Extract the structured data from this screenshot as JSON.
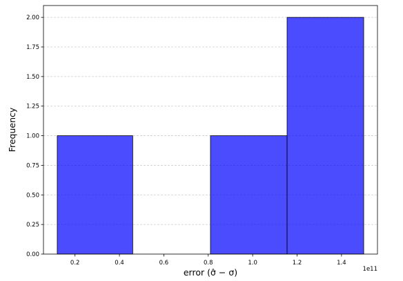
{
  "chart_data": {
    "type": "bar",
    "subtype": "histogram",
    "bins": [
      {
        "x0": 0.12,
        "x1": 0.46,
        "count": 1
      },
      {
        "x0": 0.46,
        "x1": 0.81,
        "count": 0
      },
      {
        "x0": 0.81,
        "x1": 1.155,
        "count": 1
      },
      {
        "x0": 1.155,
        "x1": 1.5,
        "count": 2
      }
    ],
    "xlabel": "error (σ̂ − σ)",
    "ylabel": "Frequency",
    "x_offset_label": "1e11",
    "xlim": [
      0.058,
      1.562
    ],
    "ylim": [
      0,
      2.1
    ],
    "xticks": [
      {
        "value": 0.2,
        "label": "0.2"
      },
      {
        "value": 0.4,
        "label": "0.4"
      },
      {
        "value": 0.6,
        "label": "0.6"
      },
      {
        "value": 0.8,
        "label": "0.8"
      },
      {
        "value": 1.0,
        "label": "1.0"
      },
      {
        "value": 1.2,
        "label": "1.2"
      },
      {
        "value": 1.4,
        "label": "1.4"
      }
    ],
    "yticks": [
      {
        "value": 0.0,
        "label": "0.00"
      },
      {
        "value": 0.25,
        "label": "0.25"
      },
      {
        "value": 0.5,
        "label": "0.50"
      },
      {
        "value": 0.75,
        "label": "0.75"
      },
      {
        "value": 1.0,
        "label": "1.00"
      },
      {
        "value": 1.25,
        "label": "1.25"
      },
      {
        "value": 1.5,
        "label": "1.50"
      },
      {
        "value": 1.75,
        "label": "1.75"
      },
      {
        "value": 2.0,
        "label": "2.00"
      }
    ],
    "grid": {
      "y": true,
      "x": false,
      "style": "dashed"
    },
    "colors": {
      "bar_fill": "#0000ff",
      "bar_opacity": 0.7,
      "bar_edge": "#000000",
      "grid": "#cccccc"
    }
  }
}
